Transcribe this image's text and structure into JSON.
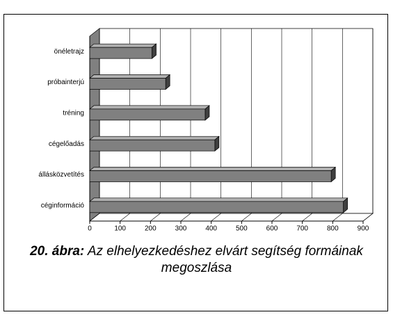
{
  "chart_data": {
    "type": "bar3d-horizontal",
    "categories": [
      "önéletrajz",
      "próbainterjú",
      "tréning",
      "cégelőadás",
      "állásközvetítés",
      "céginformáció"
    ],
    "values": [
      205,
      250,
      380,
      412,
      795,
      835
    ],
    "color": "#808080",
    "xlim": [
      0,
      900
    ],
    "xticks": [
      0,
      100,
      200,
      300,
      400,
      500,
      600,
      700,
      800,
      900
    ],
    "grid": true,
    "caption": {
      "label": "20. ábra:",
      "text": "Az elhelyezkedéshez elvárt segítség formáinak megoszlása"
    }
  }
}
